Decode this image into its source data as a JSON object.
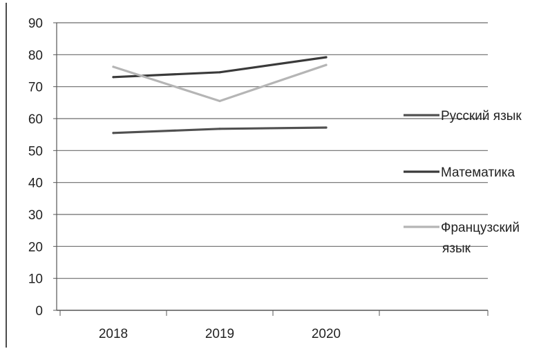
{
  "chart_data": {
    "type": "line",
    "categories": [
      "2018",
      "2019",
      "2020"
    ],
    "ylim": [
      0,
      90
    ],
    "yticks": [
      "0",
      "10",
      "20",
      "30",
      "40",
      "50",
      "60",
      "70",
      "80",
      "90"
    ],
    "grid": true,
    "legend_position": "right",
    "series": [
      {
        "name": "Русский язык",
        "values": [
          55.5,
          56.8,
          57.2
        ],
        "color": "#505050"
      },
      {
        "name": "Математика",
        "values": [
          73,
          74.5,
          79.2
        ],
        "color": "#3a3a3a"
      },
      {
        "name": "Французский язык",
        "legend_lines": [
          "Французский",
          "язык"
        ],
        "values": [
          76.2,
          65.5,
          76.8
        ],
        "color": "#b5b5b5"
      }
    ]
  }
}
